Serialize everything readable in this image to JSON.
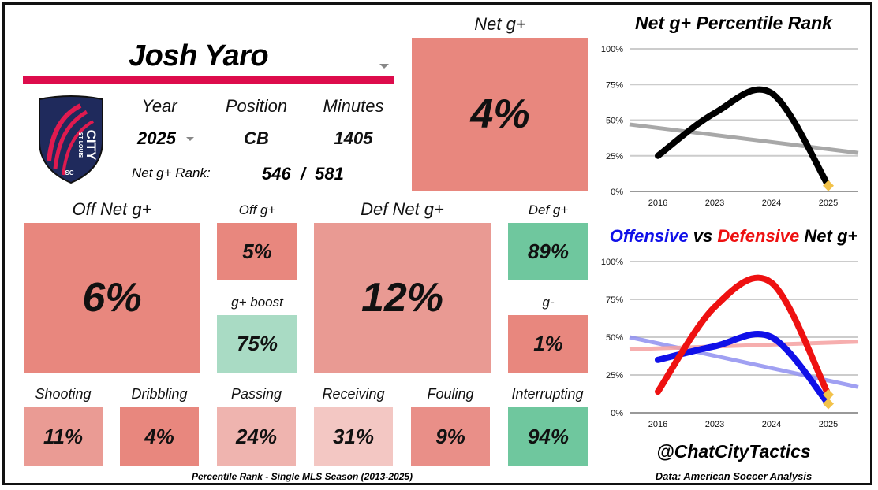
{
  "player": {
    "name": "Josh Yaro"
  },
  "colors": {
    "red_bar": "#dd0c4c",
    "navy": "#1f2a5c",
    "pink": "#e01a4f"
  },
  "info": {
    "year_label": "Year",
    "position_label": "Position",
    "minutes_label": "Minutes",
    "year": "2025",
    "position": "CB",
    "minutes": "1405",
    "rank_label": "Net g+ Rank:",
    "rank_value": "546",
    "rank_sep": "/",
    "rank_total": "581"
  },
  "logo": {
    "text_top": "ST LOUIS",
    "text_main": "CITY",
    "text_sc": "SC"
  },
  "tiles": {
    "net": {
      "label": "Net g+",
      "value": "4%",
      "color": "#e8877e"
    },
    "off_net": {
      "label": "Off Net g+",
      "value": "6%",
      "color": "#e8877e"
    },
    "off_g": {
      "label": "Off g+",
      "value": "5%",
      "color": "#e8877e"
    },
    "g_boost": {
      "label": "g+ boost",
      "value": "75%",
      "color": "#a9dbc4"
    },
    "def_net": {
      "label": "Def Net g+",
      "value": "12%",
      "color": "#e99a93"
    },
    "def_g": {
      "label": "Def g+",
      "value": "89%",
      "color": "#6fc79e"
    },
    "g_minus": {
      "label": "g-",
      "value": "1%",
      "color": "#e8877e"
    },
    "shooting": {
      "label": "Shooting",
      "value": "11%",
      "color": "#ea9b94"
    },
    "dribbling": {
      "label": "Dribbling",
      "value": "4%",
      "color": "#e8877e"
    },
    "passing": {
      "label": "Passing",
      "value": "24%",
      "color": "#efb4af"
    },
    "receiving": {
      "label": "Receiving",
      "value": "31%",
      "color": "#f3c7c3"
    },
    "fouling": {
      "label": "Fouling",
      "value": "9%",
      "color": "#e98f88"
    },
    "interrupting": {
      "label": "Interrupting",
      "value": "94%",
      "color": "#6fc79e"
    }
  },
  "footer": {
    "note": "Percentile Rank - Single MLS Season (2013-2025)",
    "handle": "@ChatCityTactics",
    "source": "Data: American Soccer Analysis"
  },
  "chart_data": [
    {
      "type": "line",
      "title": "Net g+ Percentile Rank",
      "categories": [
        "2016",
        "2023",
        "2024",
        "2025"
      ],
      "ylim": [
        0,
        100
      ],
      "yticks": [
        "0%",
        "25%",
        "50%",
        "75%",
        "100%"
      ],
      "series": [
        {
          "name": "Net g+",
          "values": [
            25,
            55,
            69,
            4
          ],
          "color": "#000000"
        },
        {
          "name": "trend",
          "values": [
            47,
            40,
            34,
            27
          ],
          "color": "#999999"
        }
      ]
    },
    {
      "type": "line",
      "title_parts": [
        "Offensive",
        "vs",
        "Defensive",
        "Net g+"
      ],
      "categories": [
        "2016",
        "2023",
        "2024",
        "2025"
      ],
      "ylim": [
        0,
        100
      ],
      "yticks": [
        "0%",
        "25%",
        "50%",
        "75%",
        "100%"
      ],
      "series": [
        {
          "name": "Offensive",
          "values": [
            35,
            44,
            50,
            6
          ],
          "color": "#1010e8"
        },
        {
          "name": "Defensive",
          "values": [
            14,
            70,
            86,
            12
          ],
          "color": "#ee1111"
        },
        {
          "name": "Offensive trend",
          "values": [
            50,
            38,
            28,
            17
          ],
          "color": "#9090f0"
        },
        {
          "name": "Defensive trend",
          "values": [
            42,
            44,
            45,
            47
          ],
          "color": "#f5a0a0"
        }
      ]
    }
  ]
}
